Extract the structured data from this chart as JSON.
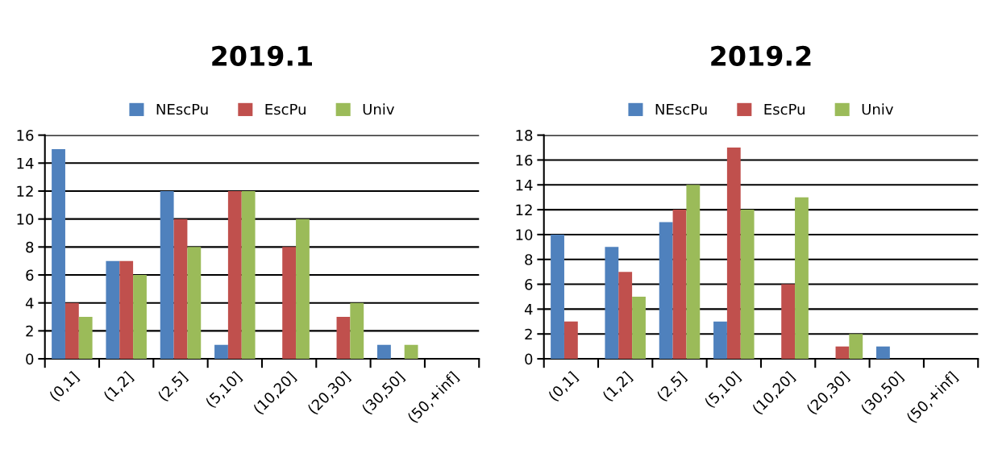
{
  "chart_data": [
    {
      "type": "bar",
      "title": "2019.1",
      "categories": [
        "(0,1]",
        "(1,2]",
        "(2,5]",
        "(5,10]",
        "(10,20]",
        "(20,30]",
        "(30,50]",
        "(50,+inf]"
      ],
      "ylim": [
        0,
        16
      ],
      "yticks": [
        0,
        2,
        4,
        6,
        8,
        10,
        12,
        14,
        16
      ],
      "grid": "y",
      "legend": "top",
      "series": [
        {
          "name": "NEscPu",
          "color": "#4f81bd",
          "values": [
            15,
            7,
            12,
            1,
            0,
            0,
            1,
            null
          ]
        },
        {
          "name": "EscPu",
          "color": "#c0504d",
          "values": [
            4,
            7,
            10,
            12,
            8,
            3,
            0,
            null
          ]
        },
        {
          "name": "Univ",
          "color": "#9bbb59",
          "values": [
            3,
            6,
            8,
            12,
            10,
            4,
            1,
            null
          ]
        }
      ]
    },
    {
      "type": "bar",
      "title": "2019.2",
      "categories": [
        "(0,1]",
        "(1,2]",
        "(2,5]",
        "(5,10]",
        "(10,20]",
        "(20,30]",
        "(30,50]",
        "(50,+inf]"
      ],
      "ylim": [
        0,
        18
      ],
      "yticks": [
        0,
        2,
        4,
        6,
        8,
        10,
        12,
        14,
        16,
        18
      ],
      "grid": "y",
      "legend": "top",
      "series": [
        {
          "name": "NEscPu",
          "color": "#4f81bd",
          "values": [
            10,
            9,
            11,
            3,
            0,
            0,
            1,
            null
          ]
        },
        {
          "name": "EscPu",
          "color": "#c0504d",
          "values": [
            3,
            7,
            12,
            17,
            6,
            1,
            0,
            null
          ]
        },
        {
          "name": "Univ",
          "color": "#9bbb59",
          "values": [
            0,
            5,
            14,
            12,
            13,
            2,
            0,
            null
          ]
        }
      ]
    }
  ]
}
